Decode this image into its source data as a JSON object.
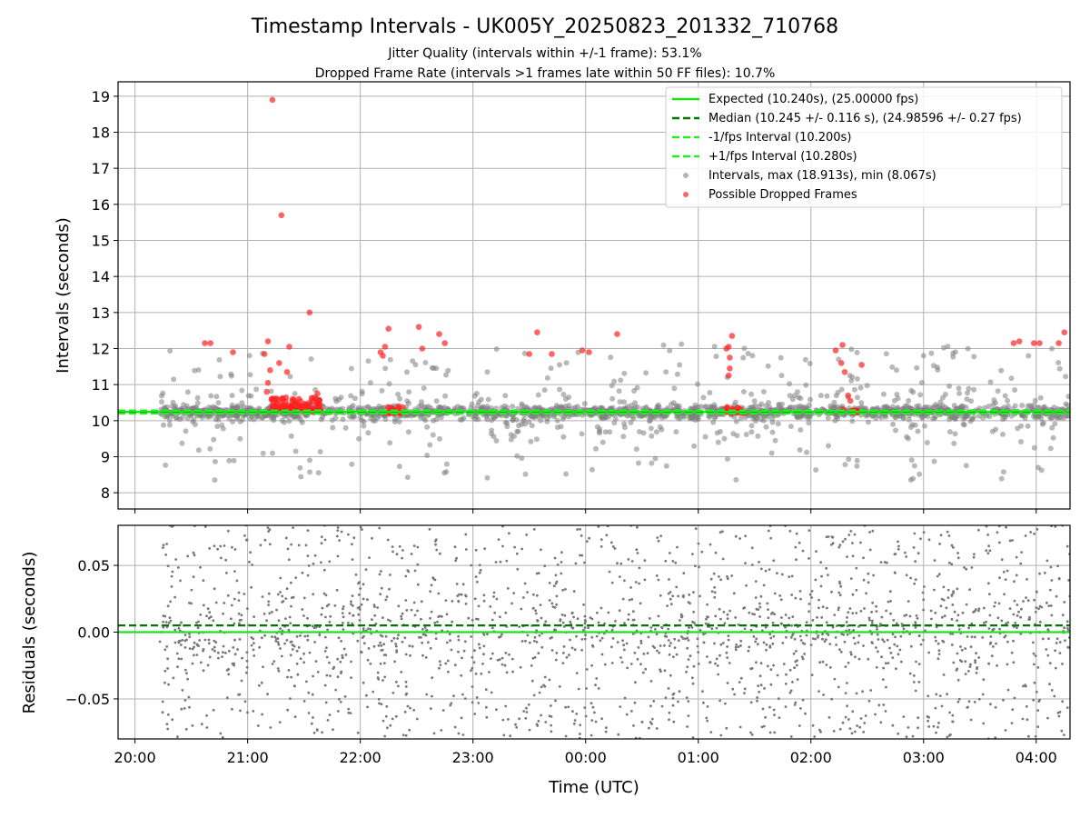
{
  "chart_data": {
    "title": "Timestamp Intervals - UK005Y_20250823_201332_710768",
    "subtitles": [
      "Jitter Quality (intervals within +/-1 frame): 53.1%",
      "Dropped Frame Rate (intervals >1 frames late within 50 FF files): 10.7%"
    ],
    "xlabel": "Time (UTC)",
    "x_ticks": [
      "20:00",
      "21:00",
      "22:00",
      "23:00",
      "00:00",
      "01:00",
      "02:00",
      "03:00",
      "04:00"
    ],
    "x_range_hours": [
      -0.15,
      8.3
    ],
    "grid": true,
    "top_panel": {
      "type": "scatter",
      "ylabel": "Intervals (seconds)",
      "ylim": [
        7.55,
        19.4
      ],
      "y_ticks": [
        8,
        9,
        10,
        11,
        12,
        13,
        14,
        15,
        16,
        17,
        18,
        19
      ],
      "legend_position": "top-right",
      "lines": [
        {
          "name": "Expected (10.240s), (25.00000 fps)",
          "y": 10.24,
          "style": "solid",
          "color": "#22dd22"
        },
        {
          "name": "Median (10.245 +/- 0.116 s), (24.98596 +/- 0.27 fps)",
          "y": 10.245,
          "style": "dashed",
          "color": "#007700"
        },
        {
          "name": "-1/fps Interval (10.200s)",
          "y": 10.2,
          "style": "dashed",
          "color": "#22ee22"
        },
        {
          "name": "+1/fps Interval (10.280s)",
          "y": 10.28,
          "style": "dashed",
          "color": "#22ee22"
        }
      ],
      "scatter_series": [
        {
          "name": "Intervals, max (18.913s), min (8.067s)",
          "color": "#808080",
          "max": 18.913,
          "min": 8.067
        },
        {
          "name": "Possible Dropped Frames",
          "color": "#ff2222"
        }
      ],
      "dropped_frames": [
        [
          0.62,
          12.15
        ],
        [
          0.67,
          12.15
        ],
        [
          0.87,
          11.9
        ],
        [
          1.15,
          11.85
        ],
        [
          1.18,
          12.2
        ],
        [
          1.2,
          11.4
        ],
        [
          1.18,
          11.05
        ],
        [
          1.17,
          10.8
        ],
        [
          1.22,
          18.9
        ],
        [
          1.3,
          15.7
        ],
        [
          1.28,
          11.6
        ],
        [
          1.35,
          11.35
        ],
        [
          1.37,
          12.05
        ],
        [
          1.55,
          13.0
        ],
        [
          1.62,
          10.75
        ],
        [
          2.18,
          11.9
        ],
        [
          2.22,
          12.05
        ],
        [
          2.25,
          12.55
        ],
        [
          2.2,
          11.8
        ],
        [
          2.52,
          12.6
        ],
        [
          2.55,
          12.0
        ],
        [
          2.7,
          12.4
        ],
        [
          2.75,
          12.15
        ],
        [
          3.57,
          12.45
        ],
        [
          3.5,
          11.85
        ],
        [
          3.7,
          11.85
        ],
        [
          3.97,
          11.95
        ],
        [
          4.03,
          11.9
        ],
        [
          4.28,
          12.4
        ],
        [
          5.3,
          12.35
        ],
        [
          5.27,
          12.05
        ],
        [
          5.25,
          12.0
        ],
        [
          5.28,
          11.75
        ],
        [
          5.28,
          11.45
        ],
        [
          5.27,
          11.25
        ],
        [
          6.22,
          11.95
        ],
        [
          6.28,
          12.1
        ],
        [
          6.27,
          11.6
        ],
        [
          6.3,
          11.35
        ],
        [
          6.33,
          10.7
        ],
        [
          6.35,
          10.55
        ],
        [
          6.45,
          11.55
        ],
        [
          7.8,
          12.15
        ],
        [
          7.85,
          12.2
        ],
        [
          7.98,
          12.15
        ],
        [
          8.03,
          12.15
        ],
        [
          8.2,
          12.15
        ],
        [
          8.25,
          12.45
        ]
      ],
      "dropped_clusters": [
        {
          "x_start": 1.2,
          "x_end": 1.65,
          "y_low": 10.25,
          "y_high": 10.65,
          "count": 120
        },
        {
          "x_start": 2.22,
          "x_end": 2.38,
          "y_low": 10.2,
          "y_high": 10.4,
          "count": 25
        },
        {
          "x_start": 5.25,
          "x_end": 5.42,
          "y_low": 10.22,
          "y_high": 10.38,
          "count": 30
        },
        {
          "x_start": 6.28,
          "x_end": 6.42,
          "y_low": 10.22,
          "y_high": 10.35,
          "count": 12
        }
      ]
    },
    "bottom_panel": {
      "type": "scatter",
      "ylabel": "Residuals (seconds)",
      "ylim": [
        -0.08,
        0.08
      ],
      "y_ticks": [
        0.05,
        0.0,
        -0.05
      ],
      "y_tick_labels": [
        "0.05",
        "0.00",
        "−0.05"
      ],
      "lines": [
        {
          "y": 0.0,
          "style": "solid",
          "color": "#22dd22"
        },
        {
          "y": 0.005,
          "style": "dashed",
          "color": "#007700"
        }
      ],
      "point_color": "#777777"
    },
    "data_x_range_hours": [
      0.22,
      8.3
    ]
  }
}
